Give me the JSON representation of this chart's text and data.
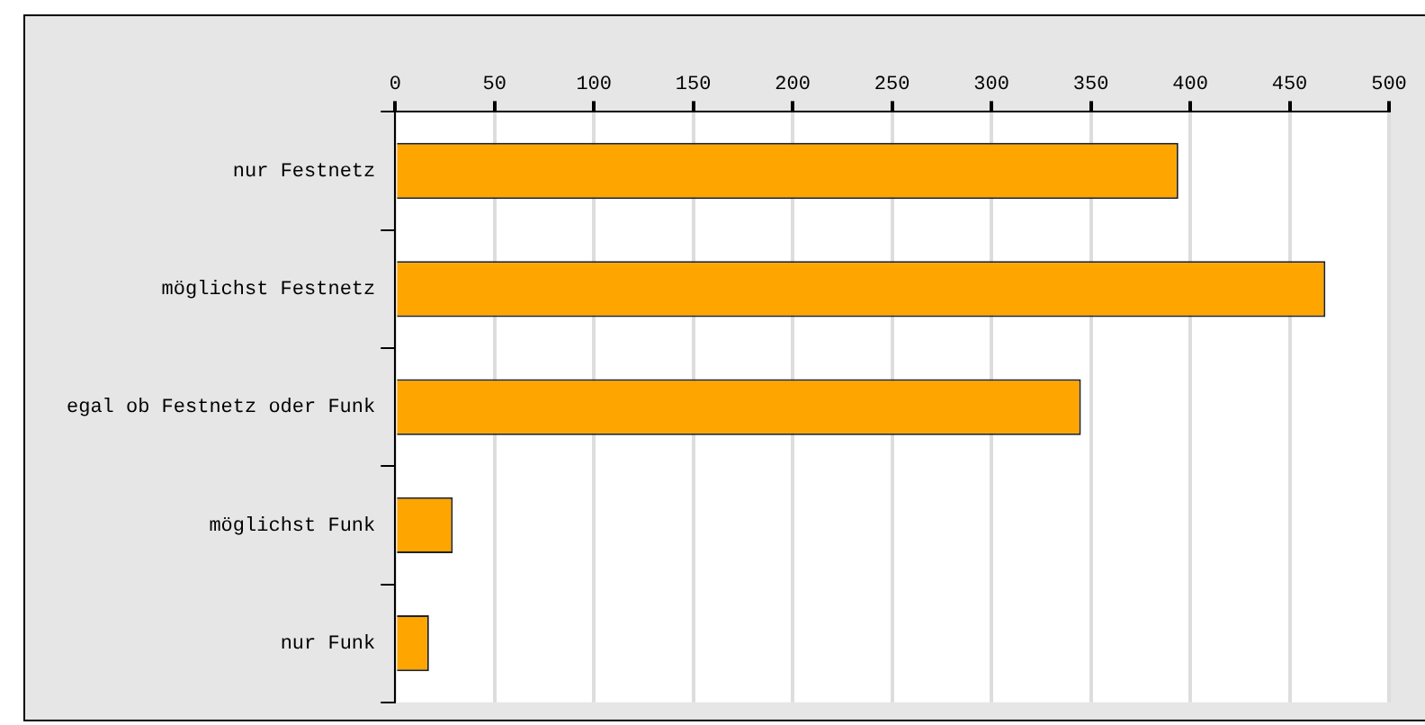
{
  "chart_data": {
    "type": "bar",
    "orientation": "horizontal",
    "categories": [
      "nur Festnetz",
      "möglichst Festnetz",
      "egal ob Festnetz oder Funk",
      "möglichst Funk",
      "nur Funk"
    ],
    "values": [
      394,
      468,
      345,
      29,
      17
    ],
    "color": "#ffa500",
    "xlim": [
      0,
      500
    ],
    "xticks": [
      0,
      50,
      100,
      150,
      200,
      250,
      300,
      350,
      400,
      450,
      500
    ],
    "grid": "x",
    "legend": false
  }
}
